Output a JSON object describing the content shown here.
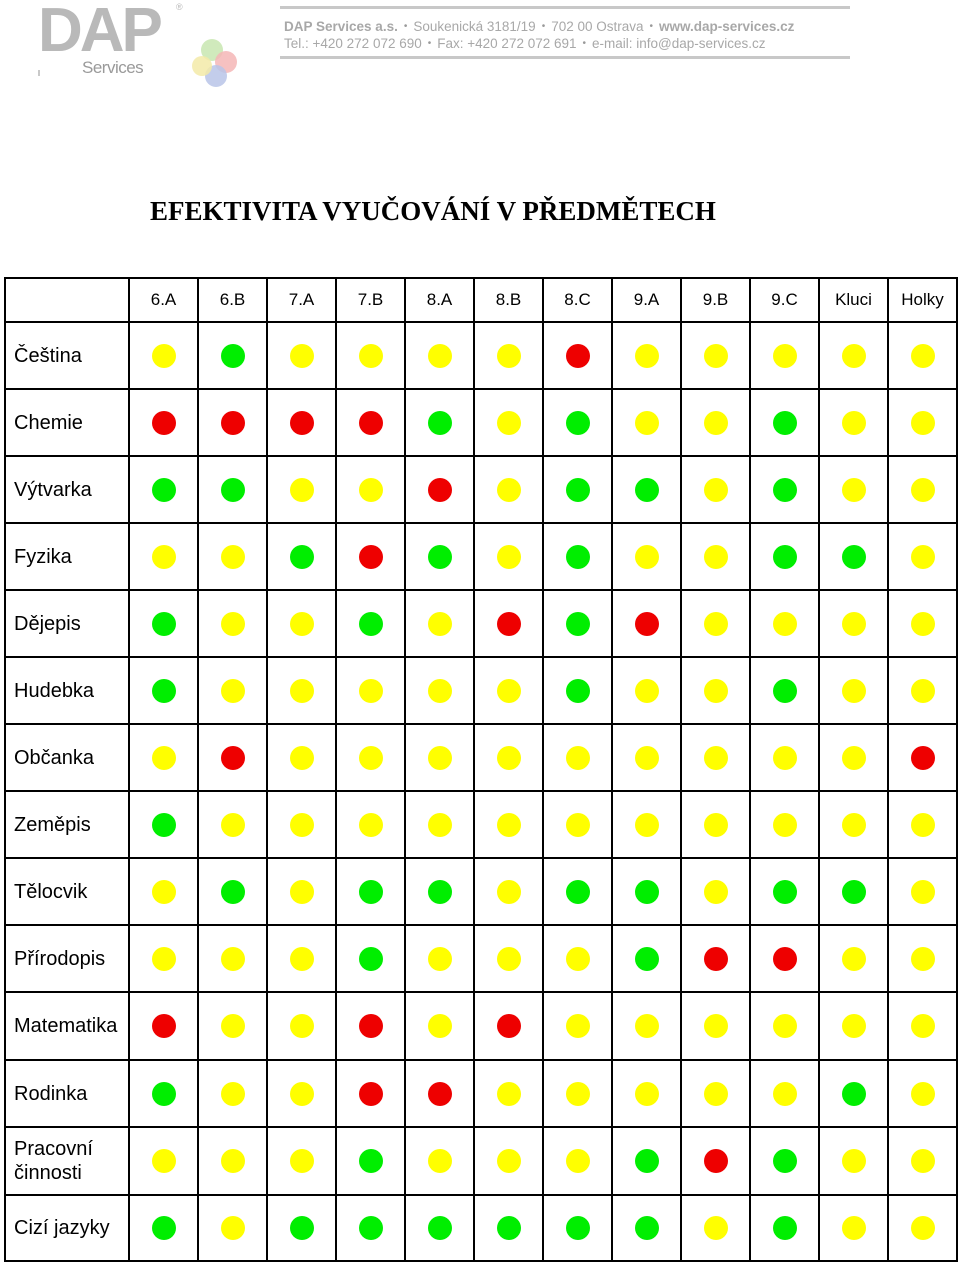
{
  "header": {
    "logo_text": "DAP",
    "logo_reg": "®",
    "logo_sub": "Services",
    "company": "DAP Services a.s.",
    "address": "Soukenická 3181/19",
    "city": "702 00 Ostrava",
    "web": "www.dap-services.cz",
    "tel": "Tel.:  +420 272 072 690",
    "fax": "Fax:  +420 272 072 691",
    "email": "e-mail: info@dap-services.cz",
    "separator": "•"
  },
  "title": "EFEKTIVITA VYUČOVÁNÍ V PŘEDMĚTECH",
  "table": {
    "columns": [
      "6.A",
      "6.B",
      "7.A",
      "7.B",
      "8.A",
      "8.B",
      "8.C",
      "9.A",
      "9.B",
      "9.C",
      "Kluci",
      "Holky"
    ],
    "rows": [
      {
        "subject": "Čeština",
        "values": [
          "yellow",
          "green",
          "yellow",
          "yellow",
          "yellow",
          "yellow",
          "red",
          "yellow",
          "yellow",
          "yellow",
          "yellow",
          "yellow"
        ]
      },
      {
        "subject": "Chemie",
        "values": [
          "red",
          "red",
          "red",
          "red",
          "green",
          "yellow",
          "green",
          "yellow",
          "yellow",
          "green",
          "yellow",
          "yellow"
        ]
      },
      {
        "subject": "Výtvarka",
        "values": [
          "green",
          "green",
          "yellow",
          "yellow",
          "red",
          "yellow",
          "green",
          "green",
          "yellow",
          "green",
          "yellow",
          "yellow"
        ]
      },
      {
        "subject": "Fyzika",
        "values": [
          "yellow",
          "yellow",
          "green",
          "red",
          "green",
          "yellow",
          "green",
          "yellow",
          "yellow",
          "green",
          "green",
          "yellow"
        ]
      },
      {
        "subject": "Dějepis",
        "values": [
          "green",
          "yellow",
          "yellow",
          "green",
          "yellow",
          "red",
          "green",
          "red",
          "yellow",
          "yellow",
          "yellow",
          "yellow"
        ]
      },
      {
        "subject": "Hudebka",
        "values": [
          "green",
          "yellow",
          "yellow",
          "yellow",
          "yellow",
          "yellow",
          "green",
          "yellow",
          "yellow",
          "green",
          "yellow",
          "yellow"
        ]
      },
      {
        "subject": "Občanka",
        "values": [
          "yellow",
          "red",
          "yellow",
          "yellow",
          "yellow",
          "yellow",
          "yellow",
          "yellow",
          "yellow",
          "yellow",
          "yellow",
          "red"
        ]
      },
      {
        "subject": "Zeměpis",
        "values": [
          "green",
          "yellow",
          "yellow",
          "yellow",
          "yellow",
          "yellow",
          "yellow",
          "yellow",
          "yellow",
          "yellow",
          "yellow",
          "yellow"
        ]
      },
      {
        "subject": "Tělocvik",
        "values": [
          "yellow",
          "green",
          "yellow",
          "green",
          "green",
          "yellow",
          "green",
          "green",
          "yellow",
          "green",
          "green",
          "yellow"
        ]
      },
      {
        "subject": "Přírodopis",
        "values": [
          "yellow",
          "yellow",
          "yellow",
          "green",
          "yellow",
          "yellow",
          "yellow",
          "green",
          "red",
          "red",
          "yellow",
          "yellow"
        ]
      },
      {
        "subject": "Matematika",
        "values": [
          "red",
          "yellow",
          "yellow",
          "red",
          "yellow",
          "red",
          "yellow",
          "yellow",
          "yellow",
          "yellow",
          "yellow",
          "yellow"
        ]
      },
      {
        "subject": "Rodinka",
        "values": [
          "green",
          "yellow",
          "yellow",
          "red",
          "red",
          "yellow",
          "yellow",
          "yellow",
          "yellow",
          "yellow",
          "green",
          "yellow"
        ]
      },
      {
        "subject": "Pracovní činnosti",
        "values": [
          "yellow",
          "yellow",
          "yellow",
          "green",
          "yellow",
          "yellow",
          "yellow",
          "green",
          "red",
          "green",
          "yellow",
          "yellow"
        ]
      },
      {
        "subject": "Cizí jazyky",
        "values": [
          "green",
          "yellow",
          "green",
          "green",
          "green",
          "green",
          "green",
          "green",
          "yellow",
          "green",
          "yellow",
          "yellow"
        ]
      }
    ]
  },
  "colors": {
    "green": "#00ee00",
    "yellow": "#ffff00",
    "red": "#ee0000"
  }
}
